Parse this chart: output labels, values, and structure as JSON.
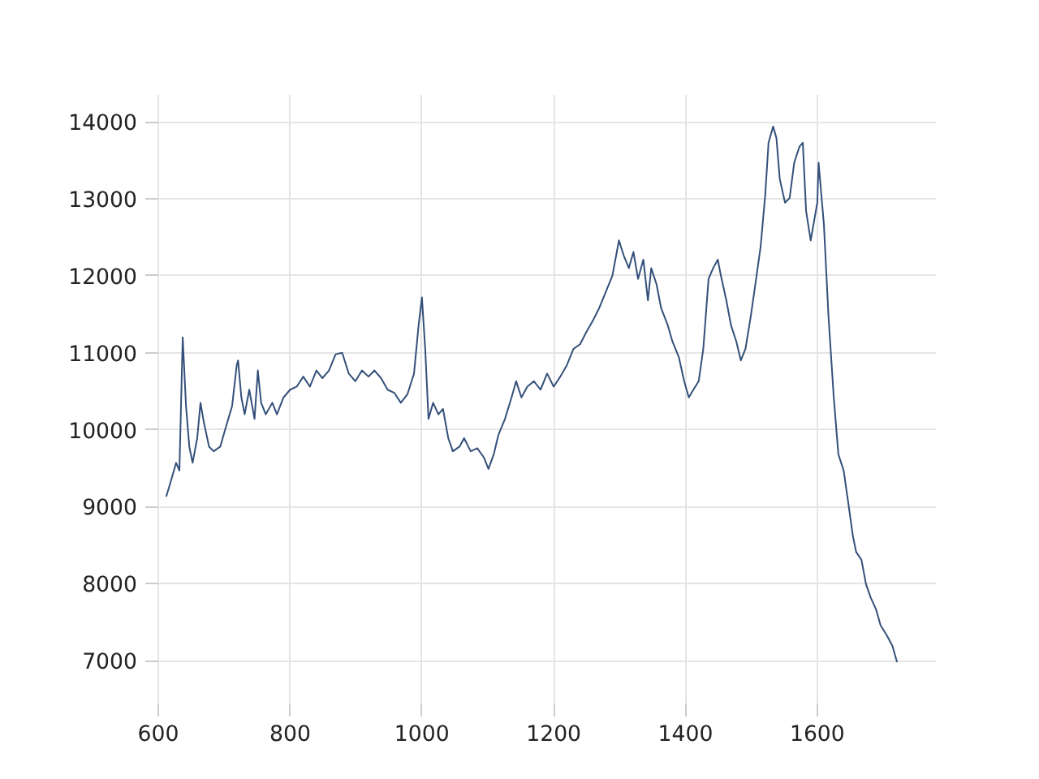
{
  "chart_data": {
    "type": "line",
    "xlim": [
      595,
      1780
    ],
    "ylim": [
      6400,
      14350
    ],
    "xticks": [
      600,
      800,
      1000,
      1200,
      1400,
      1600
    ],
    "yticks": [
      7000,
      8000,
      9000,
      10000,
      11000,
      12000,
      13000,
      14000
    ],
    "grid": true,
    "series": [
      {
        "color": "#34507a",
        "x": [
          612,
          620,
          627,
          632,
          637,
          642,
          647,
          652,
          659,
          664,
          669,
          677,
          684,
          694,
          701,
          712,
          719,
          721,
          726,
          731,
          738,
          746,
          751,
          756,
          763,
          773,
          780,
          790,
          800,
          810,
          820,
          830,
          840,
          849,
          859,
          869,
          879,
          889,
          899,
          909,
          919,
          928,
          938,
          948,
          958,
          968,
          978,
          988,
          995,
          1000,
          1005,
          1010,
          1017,
          1025,
          1032,
          1040,
          1047,
          1057,
          1064,
          1074,
          1084,
          1094,
          1101,
          1109,
          1116,
          1126,
          1136,
          1143,
          1151,
          1160,
          1170,
          1180,
          1190,
          1200,
          1210,
          1220,
          1230,
          1240,
          1249,
          1259,
          1269,
          1279,
          1289,
          1299,
          1306,
          1314,
          1321,
          1328,
          1336,
          1343,
          1348,
          1356,
          1363,
          1373,
          1380,
          1390,
          1398,
          1405,
          1412,
          1420,
          1427,
          1435,
          1442,
          1449,
          1454,
          1462,
          1469,
          1477,
          1484,
          1491,
          1499,
          1506,
          1514,
          1521,
          1526,
          1533,
          1538,
          1543,
          1551,
          1558,
          1565,
          1573,
          1578,
          1583,
          1590,
          1600,
          1602,
          1610,
          1617,
          1625,
          1632,
          1640,
          1647,
          1654,
          1659,
          1667,
          1674,
          1681,
          1689,
          1696,
          1706,
          1714,
          1721
        ],
        "values": [
          9130,
          9360,
          9570,
          9470,
          11200,
          10310,
          9780,
          9570,
          9890,
          10350,
          10100,
          9780,
          9720,
          9780,
          9990,
          10310,
          10840,
          10900,
          10420,
          10200,
          10520,
          10140,
          10770,
          10350,
          10200,
          10350,
          10200,
          10420,
          10520,
          10560,
          10690,
          10560,
          10770,
          10670,
          10770,
          10980,
          11000,
          10730,
          10630,
          10770,
          10690,
          10770,
          10670,
          10520,
          10480,
          10350,
          10460,
          10730,
          11360,
          11720,
          11050,
          10140,
          10350,
          10200,
          10270,
          9890,
          9720,
          9780,
          9890,
          9720,
          9760,
          9640,
          9490,
          9680,
          9930,
          10140,
          10420,
          10630,
          10420,
          10560,
          10630,
          10520,
          10730,
          10560,
          10690,
          10840,
          11050,
          11110,
          11260,
          11410,
          11580,
          11790,
          12000,
          12460,
          12270,
          12100,
          12310,
          11960,
          12210,
          11680,
          12100,
          11890,
          11580,
          11360,
          11150,
          10940,
          10630,
          10420,
          10520,
          10630,
          11050,
          11960,
          12100,
          12210,
          11990,
          11680,
          11360,
          11150,
          10900,
          11050,
          11470,
          11890,
          12380,
          13050,
          13730,
          13940,
          13790,
          13260,
          12950,
          13010,
          13470,
          13680,
          13730,
          12840,
          12460,
          12950,
          13470,
          12670,
          11470,
          10420,
          9680,
          9470,
          9050,
          8620,
          8410,
          8310,
          7990,
          7820,
          7670,
          7460,
          7320,
          7190,
          6980
        ]
      }
    ]
  }
}
